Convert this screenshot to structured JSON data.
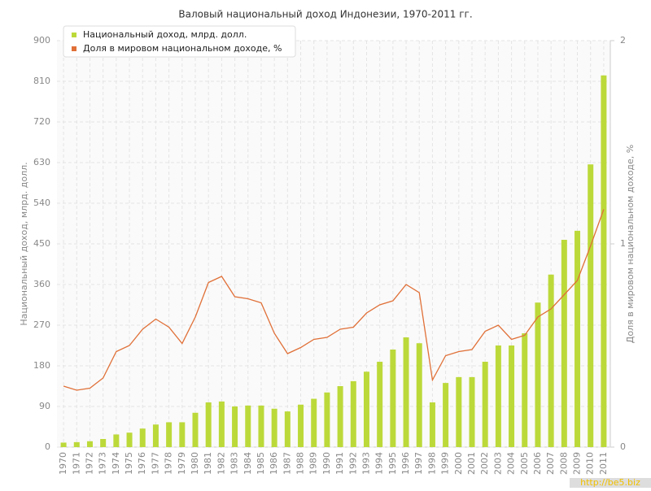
{
  "chart_data": {
    "type": "bar-line",
    "title": "Валовый национальный доход Индонезии, 1970-2011 гг.",
    "y_label": "Национальный доход, млрд. долл.",
    "y2_label": "Доля в мировом национальном доходе, %",
    "watermark": "http://be5.biz",
    "categories": [
      "1970",
      "1971",
      "1972",
      "1973",
      "1974",
      "1975",
      "1976",
      "1977",
      "1978",
      "1979",
      "1980",
      "1981",
      "1982",
      "1983",
      "1984",
      "1985",
      "1986",
      "1987",
      "1988",
      "1989",
      "1990",
      "1991",
      "1992",
      "1993",
      "1994",
      "1995",
      "1996",
      "1997",
      "1998",
      "1999",
      "2000",
      "2001",
      "2002",
      "2003",
      "2004",
      "2005",
      "2006",
      "2007",
      "2008",
      "2009",
      "2010",
      "2011"
    ],
    "series": [
      {
        "name": "Национальный доход, млрд. долл.",
        "color": "#bcd93a",
        "type": "bar",
        "values": [
          10,
          11,
          13,
          18,
          28,
          32,
          41,
          50,
          55,
          55,
          76,
          99,
          101,
          90,
          92,
          92,
          85,
          79,
          94,
          107,
          121,
          135,
          146,
          167,
          189,
          216,
          243,
          230,
          99,
          142,
          155,
          155,
          189,
          225,
          225,
          252,
          320,
          382,
          459,
          479,
          626,
          823
        ]
      },
      {
        "name": "Доля в мировом национальном доходе, %",
        "color": "#e07038",
        "type": "line",
        "axis": "y2",
        "values": [
          0.3,
          0.28,
          0.29,
          0.34,
          0.47,
          0.5,
          0.58,
          0.63,
          0.59,
          0.51,
          0.64,
          0.81,
          0.84,
          0.74,
          0.73,
          0.71,
          0.56,
          0.46,
          0.49,
          0.53,
          0.54,
          0.58,
          0.59,
          0.66,
          0.7,
          0.72,
          0.8,
          0.76,
          0.33,
          0.45,
          0.47,
          0.48,
          0.57,
          0.6,
          0.53,
          0.55,
          0.64,
          0.68,
          0.75,
          0.82,
          0.99,
          1.17
        ]
      }
    ],
    "ylim": [
      0,
      900
    ],
    "yticks": [
      0,
      90,
      180,
      270,
      360,
      450,
      540,
      630,
      720,
      810,
      900
    ],
    "y2lim": [
      0,
      2
    ],
    "y2ticks": [
      0,
      1,
      2
    ],
    "grid": true,
    "legend": "top-left"
  }
}
